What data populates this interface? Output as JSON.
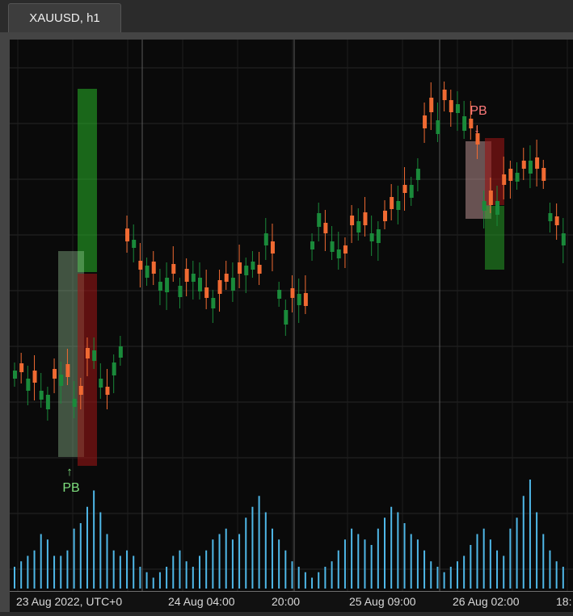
{
  "tab": {
    "label": "XAUUSD, h1"
  },
  "time_axis": {
    "labels": [
      "23 Aug 2022, UTC+0",
      "24 Aug 04:00",
      "20:00",
      "25 Aug 09:00",
      "26 Aug 02:00",
      "18:"
    ]
  },
  "annotations": {
    "bull_pb": {
      "label": "PB",
      "arrow": "↑"
    },
    "bear_pb": {
      "label": "PB",
      "arrow": "↓"
    }
  },
  "colors": {
    "bull_candle": "#1a8a3a",
    "bear_candle": "#f06a32",
    "volume": "#4fb8e8",
    "bull_label": "#7fe07f",
    "bear_label": "#ff7a7a"
  },
  "chart_data": {
    "type": "candlestick",
    "candle_count": 84,
    "direction": [
      1,
      -1,
      1,
      -1,
      1,
      1,
      -1,
      1,
      -1,
      1,
      -1,
      -1,
      1,
      1,
      -1,
      1,
      1,
      -1,
      1,
      -1,
      1,
      -1,
      1,
      1,
      -1,
      1,
      -1,
      1,
      1,
      -1,
      1,
      -1,
      -1,
      1,
      -1,
      1,
      1,
      -1,
      1,
      -1,
      1,
      1,
      -1,
      1,
      -1,
      1,
      1,
      -1,
      1,
      1,
      -1,
      -1,
      1,
      -1,
      1,
      1,
      -1,
      -1,
      1,
      -1,
      1,
      1,
      -1,
      -1,
      1,
      -1,
      -1,
      1,
      1,
      -1,
      -1,
      1,
      -1,
      1,
      -1,
      -1,
      1,
      -1,
      1,
      -1,
      -1,
      1,
      -1,
      1
    ],
    "volume_relative": [
      0.2,
      0.25,
      0.3,
      0.35,
      0.5,
      0.45,
      0.3,
      0.3,
      0.35,
      0.55,
      0.6,
      0.75,
      0.9,
      0.7,
      0.5,
      0.35,
      0.3,
      0.35,
      0.3,
      0.2,
      0.15,
      0.1,
      0.15,
      0.2,
      0.3,
      0.35,
      0.25,
      0.2,
      0.3,
      0.35,
      0.45,
      0.5,
      0.55,
      0.45,
      0.5,
      0.65,
      0.75,
      0.85,
      0.7,
      0.55,
      0.45,
      0.35,
      0.25,
      0.2,
      0.15,
      0.1,
      0.15,
      0.2,
      0.25,
      0.35,
      0.45,
      0.55,
      0.5,
      0.45,
      0.4,
      0.55,
      0.65,
      0.75,
      0.7,
      0.6,
      0.5,
      0.45,
      0.35,
      0.25,
      0.2,
      0.15,
      0.2,
      0.25,
      0.3,
      0.4,
      0.5,
      0.55,
      0.45,
      0.35,
      0.3,
      0.55,
      0.65,
      0.85,
      1.0,
      0.7,
      0.5,
      0.35,
      0.25,
      0.2
    ]
  }
}
